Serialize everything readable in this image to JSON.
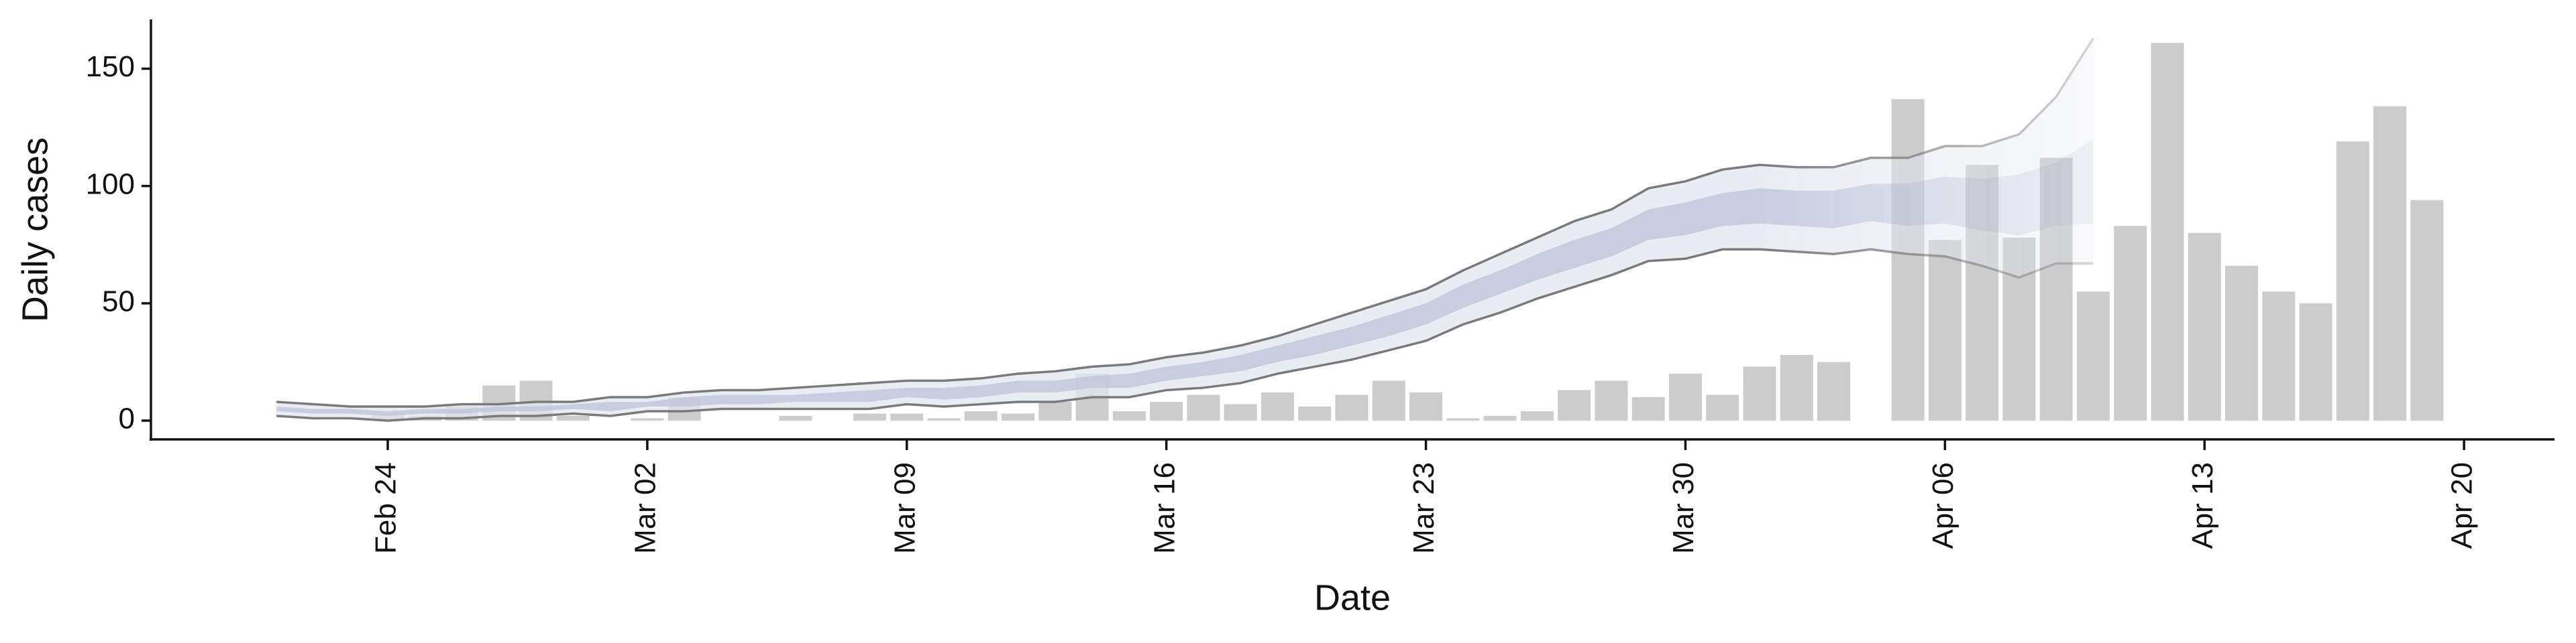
{
  "chart_data": {
    "type": "bar",
    "x_label": "Date",
    "y_label": "Daily cases",
    "categories": [
      null,
      null,
      null,
      "Feb 24",
      null,
      null,
      null,
      null,
      null,
      null,
      "Mar 02",
      null,
      null,
      null,
      null,
      null,
      null,
      "Mar 09",
      null,
      null,
      null,
      null,
      null,
      null,
      "Mar 16",
      null,
      null,
      null,
      null,
      null,
      null,
      "Mar 23",
      null,
      null,
      null,
      null,
      null,
      null,
      "Mar 30",
      null,
      null,
      null,
      null,
      null,
      null,
      "Apr 06",
      null,
      null,
      null,
      null,
      null,
      null,
      "Apr 13",
      null,
      null,
      null,
      null,
      null,
      null,
      "Apr 20"
    ],
    "values": [
      null,
      null,
      null,
      3,
      2,
      6,
      15,
      17,
      2,
      0,
      1,
      10,
      0,
      0,
      2,
      0,
      3,
      3,
      1,
      4,
      3,
      8,
      20,
      4,
      8,
      11,
      7,
      12,
      6,
      11,
      17,
      12,
      1,
      2,
      4,
      13,
      17,
      10,
      20,
      11,
      23,
      28,
      25,
      null,
      137,
      77,
      109,
      78,
      112,
      55,
      83,
      161,
      80,
      66,
      55,
      50,
      119,
      134,
      94,
      null
    ],
    "color": "#cccccc",
    "ylim": [
      -8,
      171
    ],
    "yticks": [
      0,
      50,
      100,
      150
    ],
    "bands": [
      {
        "color": "#e3e6ef",
        "line_color": "#7a7a7a",
        "upper": [
          8,
          7,
          6,
          6,
          6,
          7,
          7,
          8,
          8,
          10,
          10,
          12,
          13,
          13,
          14,
          15,
          16,
          17,
          17,
          18,
          20,
          21,
          23,
          24,
          27,
          29,
          32,
          36,
          41,
          46,
          51,
          56,
          64,
          71,
          78,
          85,
          90,
          99,
          102,
          107,
          109,
          108,
          108,
          112,
          112,
          117,
          117,
          122,
          138,
          163,
          null,
          null,
          null,
          null,
          null,
          null,
          null,
          null,
          null,
          null
        ],
        "lower": [
          2,
          1,
          1,
          0,
          1,
          1,
          2,
          2,
          3,
          2,
          4,
          4,
          5,
          5,
          5,
          5,
          5,
          7,
          6,
          7,
          8,
          8,
          10,
          10,
          13,
          14,
          16,
          20,
          23,
          26,
          30,
          34,
          41,
          46,
          52,
          57,
          62,
          68,
          69,
          73,
          73,
          72,
          71,
          73,
          71,
          70,
          66,
          61,
          67,
          67,
          null,
          null,
          null,
          null,
          null,
          null,
          null,
          null,
          null,
          null
        ]
      },
      {
        "color": "#bcc3d9",
        "upper": [
          6,
          5,
          5,
          4,
          5,
          5,
          6,
          6,
          7,
          8,
          8,
          10,
          11,
          11,
          11,
          12,
          13,
          14,
          14,
          15,
          17,
          17,
          19,
          20,
          23,
          25,
          28,
          32,
          36,
          40,
          45,
          50,
          58,
          64,
          71,
          77,
          82,
          90,
          93,
          97,
          99,
          98,
          98,
          101,
          101,
          104,
          103,
          105,
          110,
          120,
          null,
          null,
          null,
          null,
          null,
          null,
          null,
          null,
          null,
          null
        ],
        "lower": [
          4,
          3,
          3,
          2,
          3,
          3,
          4,
          4,
          5,
          4,
          6,
          6,
          7,
          7,
          8,
          8,
          8,
          10,
          9,
          10,
          12,
          12,
          14,
          14,
          17,
          19,
          21,
          25,
          28,
          32,
          36,
          41,
          48,
          54,
          60,
          65,
          70,
          77,
          79,
          83,
          84,
          83,
          82,
          85,
          83,
          84,
          81,
          79,
          83,
          84,
          null,
          null,
          null,
          null,
          null,
          null,
          null,
          null,
          null,
          null
        ]
      }
    ]
  }
}
